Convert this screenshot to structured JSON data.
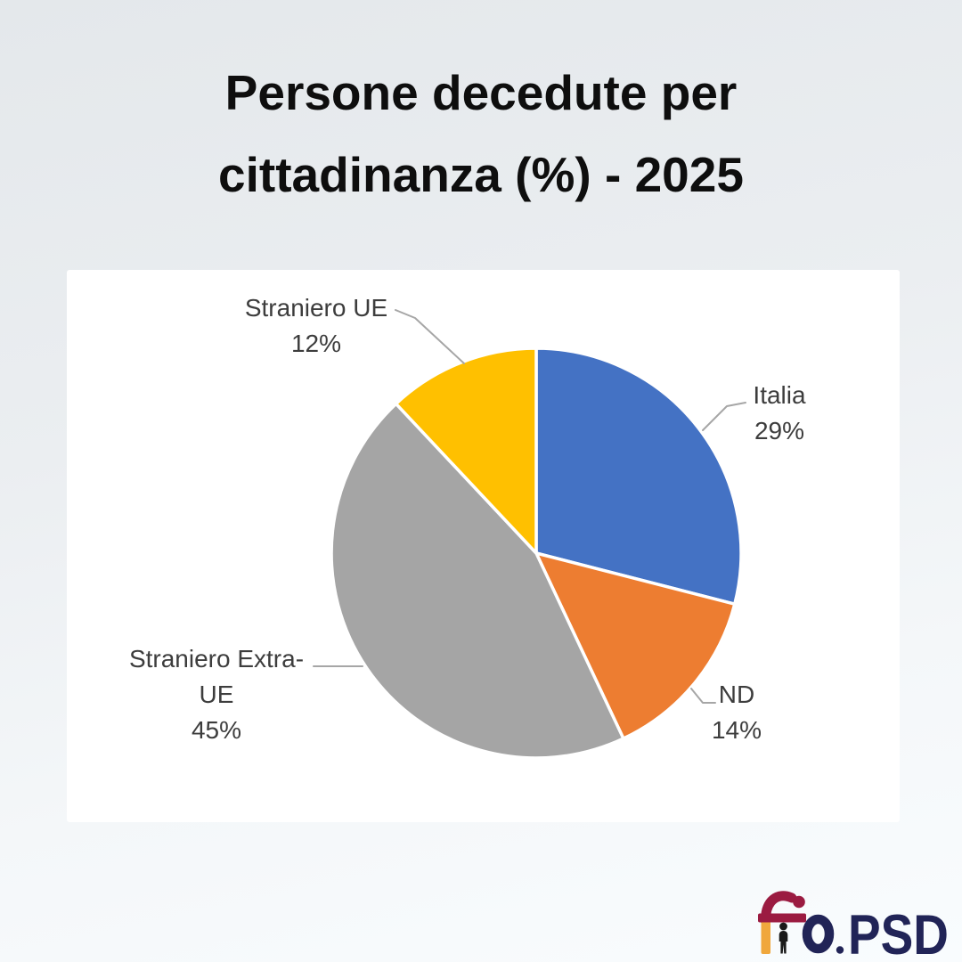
{
  "title": {
    "line1": "Persone decedute per",
    "line2": "cittadinanza (%) - 2025"
  },
  "chart_data": {
    "type": "pie",
    "title": "Persone decedute per cittadinanza (%) - 2025",
    "unit": "%",
    "direction": "clockwise",
    "start_angle_deg": 0,
    "labels_position": "outside-with-leader-lines",
    "slices": [
      {
        "id": "italia",
        "label": "Italia",
        "value": 29,
        "pct": "29%",
        "color": "#4472C4"
      },
      {
        "id": "nd",
        "label": "ND",
        "value": 14,
        "pct": "14%",
        "color": "#ED7D31"
      },
      {
        "id": "straniero-extra-ue",
        "label": "Straniero Extra-UE",
        "label_lines": [
          "Straniero Extra-",
          "UE"
        ],
        "value": 45,
        "pct": "45%",
        "color": "#A5A5A5"
      },
      {
        "id": "straniero-ue",
        "label": "Straniero UE",
        "value": 12,
        "pct": "12%",
        "color": "#FFC000"
      }
    ]
  },
  "logo": {
    "brand": "fio.PSD",
    "psd_text": "PSD",
    "colors": {
      "maroon": "#9B1B41",
      "orange": "#F0A73C",
      "navy": "#212457",
      "figure": "#1A1A1A"
    }
  },
  "style": {
    "background_top": "#e4e8eb",
    "background_bottom": "#f9fcfe",
    "panel": "#ffffff",
    "title_color": "#0E0E0E",
    "label_color": "#3D3D3D",
    "leader_line_color": "#A6A6A6",
    "slice_separator_color": "#FFFFFF"
  }
}
